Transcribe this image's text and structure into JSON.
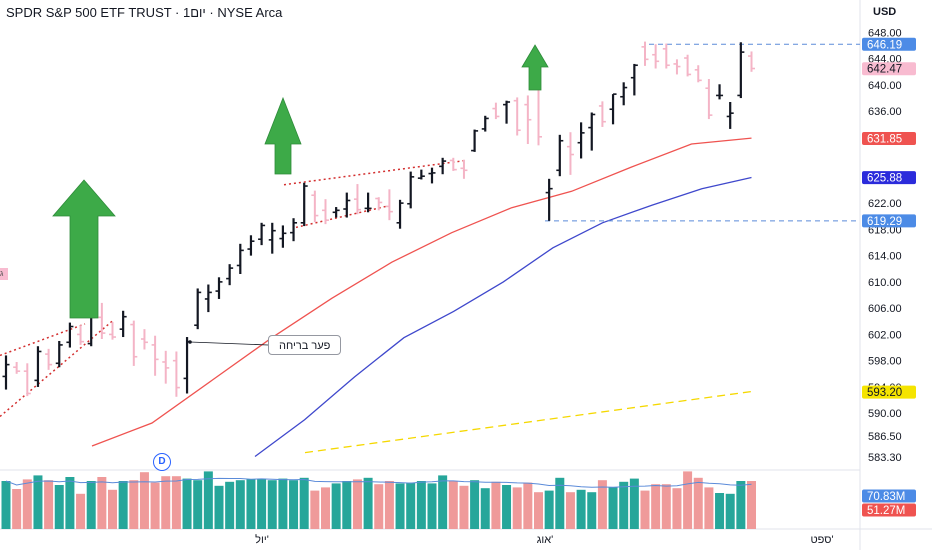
{
  "header": {
    "title": "SPDR S&P 500 ETF TRUST · 1יום · NYSE Arca",
    "currency": "USD"
  },
  "colors": {
    "up_bar": "#131722",
    "down_bar": "#f4b4c6",
    "ma_red": "#ef5350",
    "ma_blue": "#3f48cc",
    "ma_yellow": "#f5d800",
    "vol_up": "#26a69a",
    "vol_down": "#ef9a9a",
    "arrow_green": "#3daa48",
    "dashed_blue": "#5b8bd9",
    "pattern_red": "#d32f2f"
  },
  "annotations": {
    "breakaway_gap": "פער בריחה",
    "dividend_marker": "D",
    "left_marker": "ג"
  },
  "chart_data": {
    "type": "ohlc",
    "title": "SPDR S&P 500 ETF TRUST · 1יום · NYSE Arca",
    "y_axis": {
      "range": [
        581.5,
        650.5
      ],
      "ticks": [
        "648.00",
        "644.00",
        "640.00",
        "636.00",
        "622.00",
        "618.00",
        "614.00",
        "610.00",
        "606.00",
        "602.00",
        "598.00",
        "594.00",
        "590.00",
        "586.50",
        "583.30"
      ]
    },
    "x_axis": {
      "labels": [
        "יול'",
        "אוג'",
        "ספט'"
      ]
    },
    "price_labels": [
      {
        "value": 646.19,
        "text": "646.19",
        "color": "#4c8be6"
      },
      {
        "value": 642.47,
        "text": "642.47",
        "color": "#f8bbd0"
      },
      {
        "value": 631.85,
        "text": "631.85",
        "color": "#ef5350"
      },
      {
        "value": 625.88,
        "text": "625.88",
        "color": "#2b2bdb"
      },
      {
        "value": 619.29,
        "text": "619.29",
        "color": "#4c8be6"
      },
      {
        "value": 593.2,
        "text": "593.20",
        "color": "#f5e400"
      }
    ],
    "volume_labels": [
      {
        "text": "70.83M",
        "color": "#4c8be6"
      },
      {
        "text": "51.27M",
        "color": "#ef5350"
      }
    ],
    "series": [
      {
        "name": "OHLC",
        "bars": [
          [
            595.6,
            598.8,
            593.6,
            597.4
          ],
          [
            597.0,
            597.8,
            596.0,
            596.4
          ],
          [
            596.4,
            597.6,
            592.6,
            593.0
          ],
          [
            595.0,
            600.2,
            594.0,
            599.4
          ],
          [
            599.0,
            599.8,
            596.6,
            597.4
          ],
          [
            597.6,
            601.0,
            597.0,
            600.4
          ],
          [
            600.8,
            603.8,
            600.0,
            603.2
          ],
          [
            602.0,
            603.4,
            600.4,
            600.9
          ],
          [
            600.6,
            605.2,
            600.2,
            604.6
          ],
          [
            604.6,
            606.8,
            601.3,
            602.2
          ],
          [
            602.0,
            603.9,
            601.2,
            601.6
          ],
          [
            602.8,
            605.6,
            601.6,
            604.7
          ],
          [
            603.5,
            604.1,
            597.2,
            598.6
          ],
          [
            601.3,
            602.8,
            599.7,
            600.8
          ],
          [
            600.4,
            601.8,
            595.7,
            598.2
          ],
          [
            597.8,
            599.5,
            594.5,
            596.9
          ],
          [
            598.0,
            599.4,
            592.5,
            593.9
          ],
          [
            595.3,
            601.6,
            593.0,
            600.9
          ],
          [
            603.4,
            609.0,
            602.8,
            608.4
          ],
          [
            607.4,
            609.6,
            605.4,
            608.4
          ],
          [
            608.6,
            610.7,
            607.4,
            610.0
          ],
          [
            610.5,
            612.7,
            609.5,
            612.1
          ],
          [
            612.5,
            615.8,
            611.2,
            614.8
          ],
          [
            615.0,
            617.1,
            614.0,
            616.2
          ],
          [
            616.5,
            619.0,
            615.6,
            618.6
          ],
          [
            616.4,
            619.0,
            614.3,
            617.8
          ],
          [
            616.6,
            618.6,
            615.2,
            617.4
          ],
          [
            617.5,
            619.7,
            616.2,
            619.0
          ],
          [
            619.0,
            625.1,
            618.5,
            624.6
          ],
          [
            623.2,
            623.9,
            619.1,
            620.1
          ],
          [
            620.9,
            622.6,
            618.8,
            619.4
          ],
          [
            620.6,
            621.4,
            619.8,
            620.9
          ],
          [
            621.1,
            623.6,
            619.8,
            622.4
          ],
          [
            622.6,
            624.9,
            620.3,
            621.0
          ],
          [
            621.2,
            623.6,
            620.6,
            621.2
          ],
          [
            622.7,
            622.9,
            620.9,
            622.1
          ],
          [
            621.5,
            624.1,
            619.4,
            620.7
          ],
          [
            619.0,
            622.5,
            618.1,
            622.0
          ],
          [
            621.9,
            626.8,
            621.2,
            626.0
          ],
          [
            625.8,
            627.1,
            625.6,
            626.1
          ],
          [
            626.5,
            627.4,
            625.0,
            626.6
          ],
          [
            627.6,
            628.9,
            626.4,
            628.4
          ],
          [
            628.5,
            628.9,
            626.9,
            627.1
          ],
          [
            627.3,
            628.6,
            625.7,
            627.0
          ],
          [
            630.0,
            633.2,
            629.8,
            633.0
          ],
          [
            633.3,
            635.3,
            632.9,
            634.9
          ],
          [
            636.4,
            637.3,
            634.8,
            635.2
          ],
          [
            637.0,
            637.6,
            634.1,
            637.4
          ],
          [
            637.6,
            638.1,
            632.3,
            633.1
          ],
          [
            637.0,
            638.4,
            631.0,
            634.7
          ],
          [
            639.5,
            640.6,
            630.8,
            632.1
          ],
          [
            623.6,
            625.7,
            619.3,
            624.2
          ],
          [
            627.0,
            632.4,
            626.1,
            631.5
          ],
          [
            630.6,
            632.8,
            626.3,
            629.4
          ],
          [
            631.2,
            634.3,
            628.8,
            632.7
          ],
          [
            633.5,
            635.8,
            630.0,
            635.5
          ],
          [
            636.8,
            637.5,
            633.6,
            634.4
          ],
          [
            636.3,
            638.6,
            634.0,
            638.6
          ],
          [
            638.2,
            640.4,
            636.9,
            639.6
          ],
          [
            641.1,
            643.2,
            638.4,
            643.0
          ],
          [
            645.8,
            646.6,
            642.9,
            643.9
          ],
          [
            644.6,
            646.2,
            642.5,
            643.6
          ],
          [
            645.5,
            646.3,
            642.5,
            643.0
          ],
          [
            643.2,
            643.9,
            641.6,
            642.8
          ],
          [
            644.1,
            644.6,
            641.3,
            641.6
          ],
          [
            642.3,
            643.0,
            640.4,
            640.7
          ],
          [
            639.5,
            640.9,
            634.8,
            635.4
          ],
          [
            638.4,
            640.1,
            637.8,
            638.4
          ],
          [
            635.2,
            637.4,
            633.3,
            635.7
          ],
          [
            638.4,
            646.5,
            638.0,
            645.0
          ],
          [
            644.4,
            645.1,
            642.0,
            642.5
          ]
        ]
      },
      {
        "name": "MA red",
        "values": [
          585.0,
          588.5,
          595.0,
          601.5,
          607.5,
          613.0,
          617.5,
          621.3,
          623.8,
          627.5,
          631.0,
          631.9
        ]
      },
      {
        "name": "MA blue",
        "values": [
          583.4,
          589.0,
          595.5,
          601.5,
          605.5,
          610.0,
          615.2,
          619.0,
          621.7,
          624.2,
          625.9
        ]
      },
      {
        "name": "MA yellow",
        "values": [
          584.0,
          593.3
        ]
      },
      {
        "name": "Volume",
        "values": [
          60,
          50,
          62,
          67,
          61,
          55,
          65,
          44,
          60,
          65,
          49,
          60,
          61,
          71,
          58,
          66,
          66,
          63,
          61,
          72,
          54,
          59,
          61,
          62,
          62,
          61,
          63,
          61,
          64,
          48,
          52,
          57,
          60,
          62,
          64,
          56,
          60,
          57,
          58,
          60,
          57,
          67,
          60,
          54,
          61,
          51,
          59,
          55,
          52,
          58,
          46,
          48,
          64,
          46,
          49,
          46,
          61,
          52,
          59,
          63,
          48,
          56,
          56,
          51,
          72,
          64,
          52,
          45,
          44,
          60,
          60
        ]
      }
    ]
  }
}
